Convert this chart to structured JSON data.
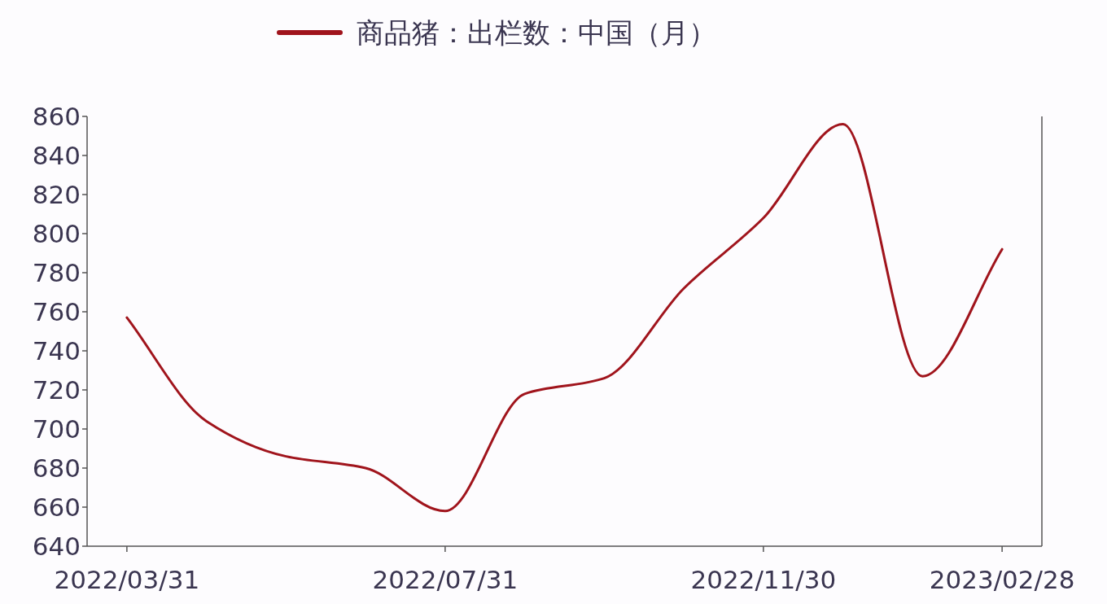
{
  "chart_data": {
    "type": "line",
    "categories": [
      "2022/03/31",
      null,
      null,
      null,
      "2022/07/31",
      null,
      null,
      null,
      "2022/11/30",
      null,
      null,
      "2023/02/28"
    ],
    "series": [
      {
        "name": "商品猪：出栏数：中国（月）",
        "color": "#a0141c",
        "values": [
          757,
          704,
          686,
          680,
          658,
          718,
          726,
          772,
          808,
          856,
          727,
          792
        ]
      }
    ],
    "ylim": [
      640,
      860
    ],
    "yticks": [
      640,
      660,
      680,
      700,
      720,
      740,
      760,
      780,
      800,
      820,
      840,
      860
    ],
    "legend": "top",
    "grid": false,
    "marker": "none",
    "line_style": "solid"
  }
}
